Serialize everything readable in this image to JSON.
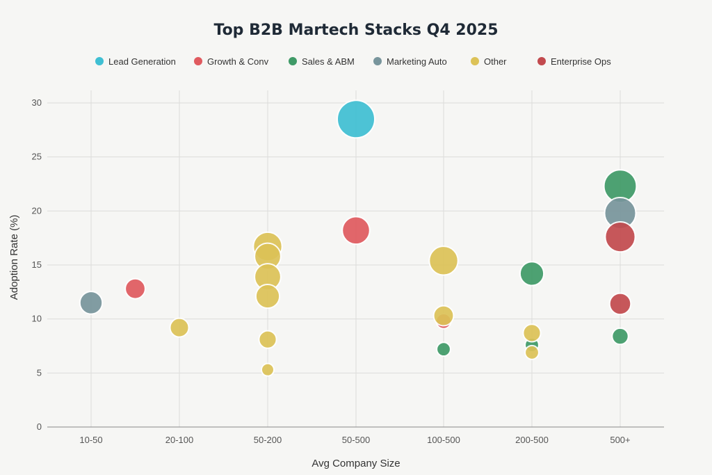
{
  "chart_data": {
    "type": "scatter",
    "title": "Top B2B Martech Stacks Q4 2025",
    "xlabel": "Avg Company Size",
    "ylabel": "Adoption Rate (%)",
    "x_categories": [
      "10-50",
      "20-100",
      "50-200",
      "50-500",
      "100-500",
      "200-500",
      "500+"
    ],
    "ylim": [
      0,
      30
    ],
    "yticks": [
      0,
      5,
      10,
      15,
      20,
      25,
      30
    ],
    "grid": true,
    "legend_position": "top",
    "series": [
      {
        "name": "Lead Generation",
        "color": "#3fbfd3",
        "points": [
          {
            "x": 3,
            "y": 28.5,
            "size": 3.0
          }
        ]
      },
      {
        "name": "Growth & Conv",
        "color": "#e05a5f",
        "points": [
          {
            "x": 0.5,
            "y": 12.8,
            "size": 1.6
          },
          {
            "x": 3,
            "y": 18.2,
            "size": 2.2
          },
          {
            "x": 4,
            "y": 9.8,
            "size": 1.2
          }
        ]
      },
      {
        "name": "Sales & ABM",
        "color": "#3f9a67",
        "points": [
          {
            "x": 4,
            "y": 7.2,
            "size": 1.1
          },
          {
            "x": 5,
            "y": 14.2,
            "size": 1.9
          },
          {
            "x": 5,
            "y": 7.6,
            "size": 1.1
          },
          {
            "x": 6,
            "y": 22.3,
            "size": 2.6
          },
          {
            "x": 6,
            "y": 8.4,
            "size": 1.3
          }
        ]
      },
      {
        "name": "Marketing Auto",
        "color": "#78959c",
        "points": [
          {
            "x": 0,
            "y": 11.5,
            "size": 1.8
          },
          {
            "x": 6,
            "y": 19.8,
            "size": 2.5
          }
        ]
      },
      {
        "name": "Other",
        "color": "#dcc257",
        "points": [
          {
            "x": 1,
            "y": 9.2,
            "size": 1.5
          },
          {
            "x": 2,
            "y": 16.7,
            "size": 2.3
          },
          {
            "x": 2,
            "y": 15.8,
            "size": 2.1
          },
          {
            "x": 2,
            "y": 13.9,
            "size": 2.1
          },
          {
            "x": 2,
            "y": 12.1,
            "size": 1.9
          },
          {
            "x": 2,
            "y": 8.1,
            "size": 1.4
          },
          {
            "x": 2,
            "y": 5.3,
            "size": 1.0
          },
          {
            "x": 4,
            "y": 15.4,
            "size": 2.3
          },
          {
            "x": 4,
            "y": 10.3,
            "size": 1.6
          },
          {
            "x": 5,
            "y": 8.7,
            "size": 1.4
          },
          {
            "x": 5,
            "y": 6.9,
            "size": 1.1
          }
        ]
      },
      {
        "name": "Enterprise Ops",
        "color": "#c24a4e",
        "points": [
          {
            "x": 6,
            "y": 17.6,
            "size": 2.4
          },
          {
            "x": 6,
            "y": 11.4,
            "size": 1.7
          }
        ]
      }
    ]
  }
}
